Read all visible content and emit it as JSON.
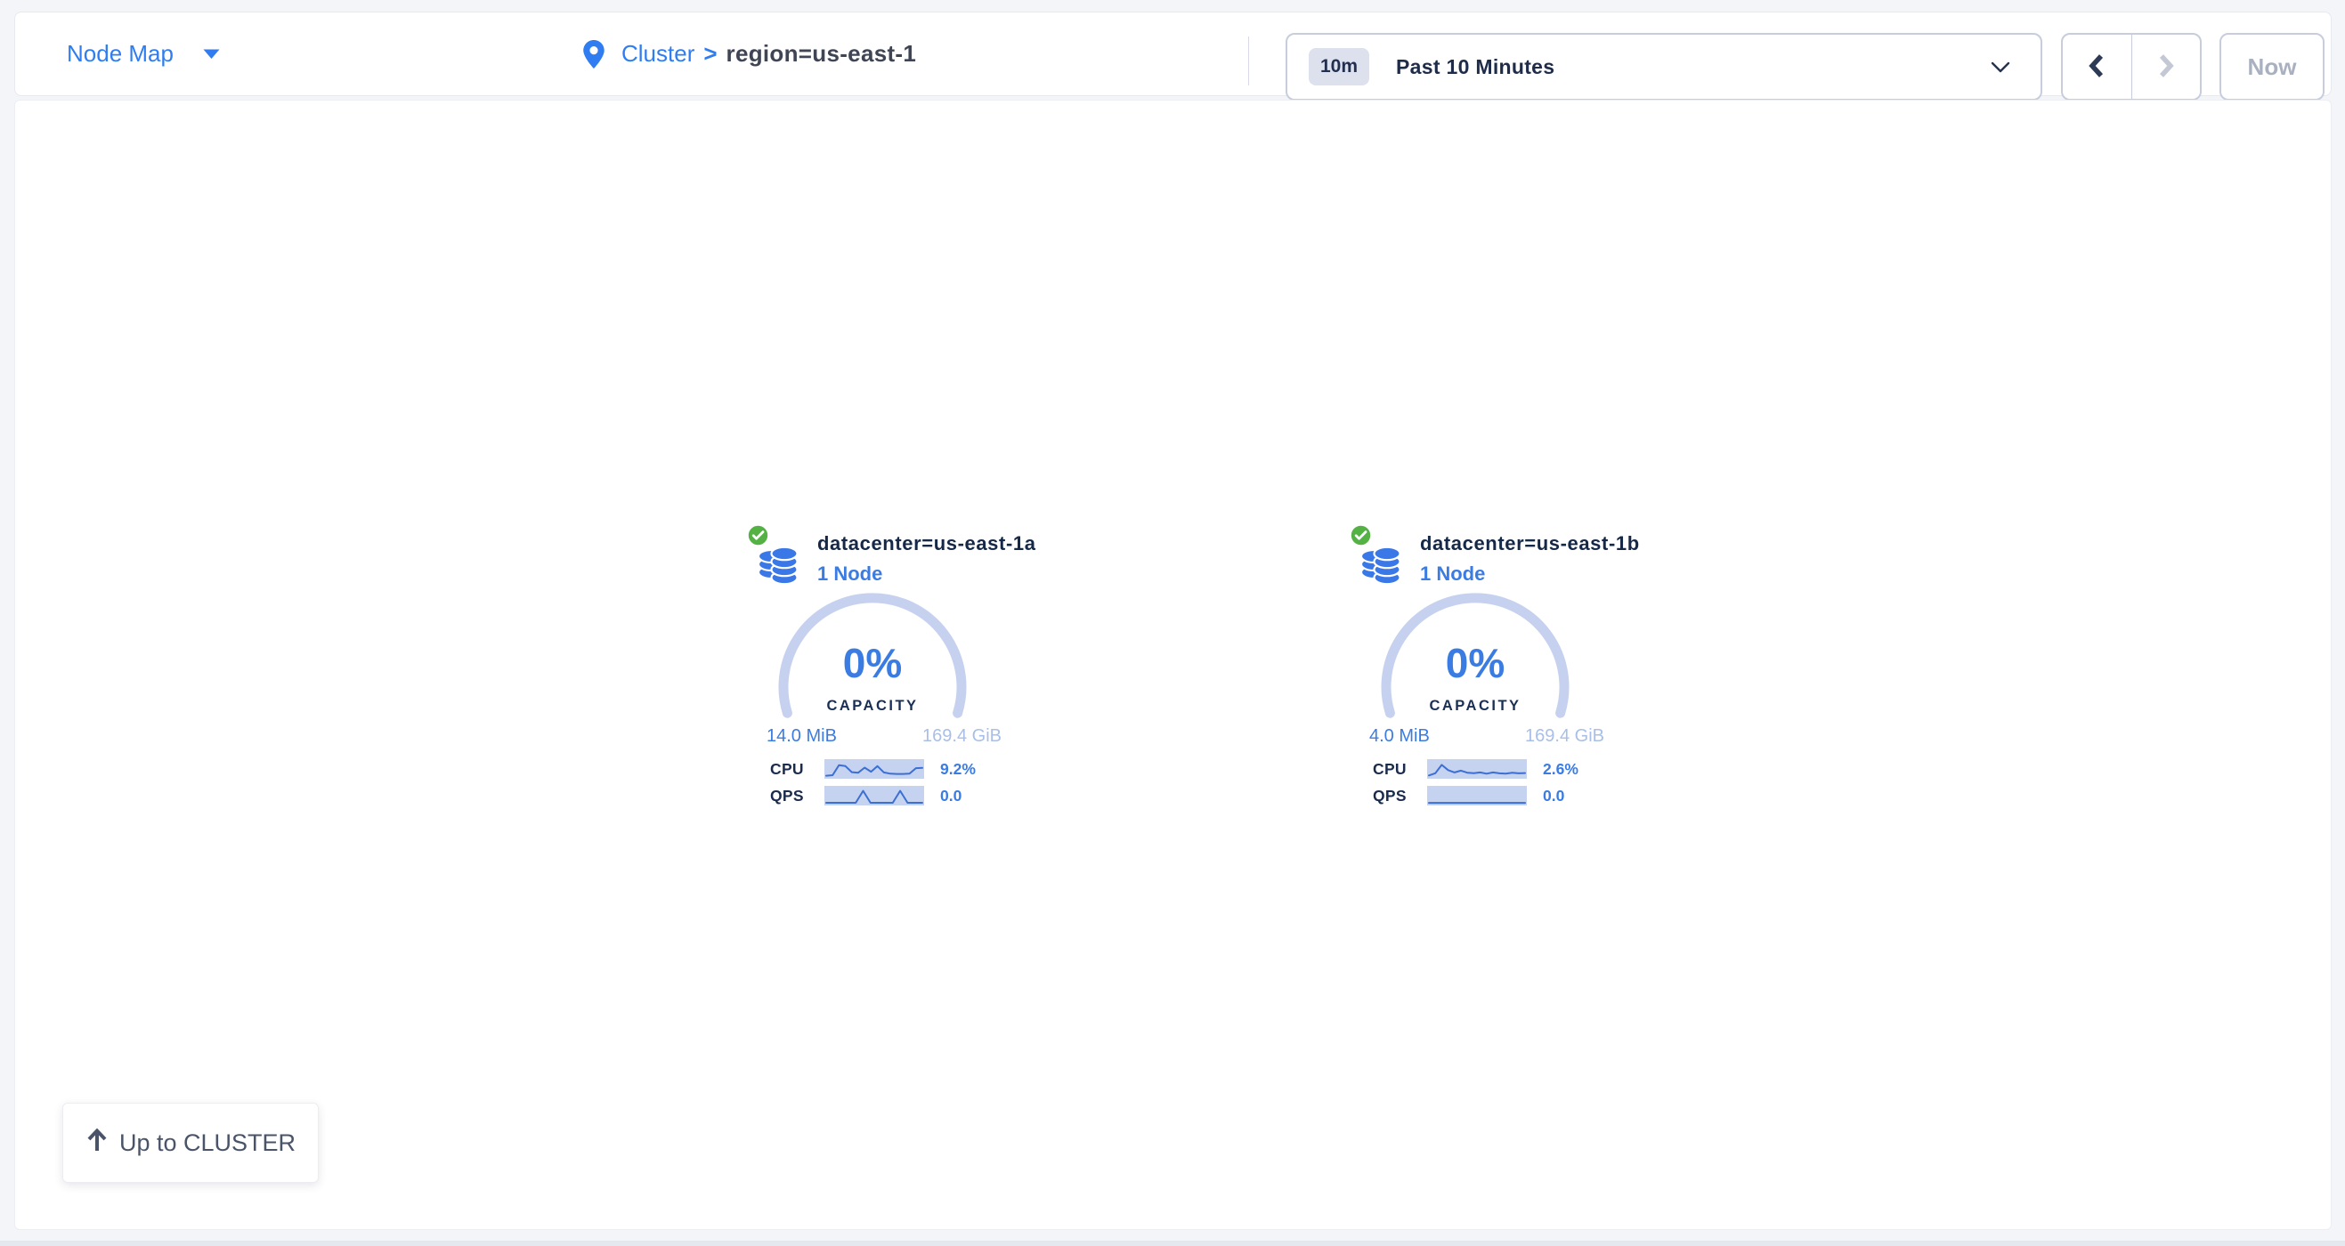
{
  "header": {
    "view_selector": {
      "label": "Node Map"
    },
    "breadcrumb": {
      "root": "Cluster",
      "separator": ">",
      "current": "region=us-east-1"
    },
    "time_controls": {
      "range_badge": "10m",
      "range_label": "Past 10 Minutes",
      "now_label": "Now"
    }
  },
  "datacenters": [
    {
      "status": "healthy",
      "title": "datacenter=us-east-1a",
      "nodes_label": "1 Node",
      "capacity_percent": "0%",
      "capacity_label": "CAPACITY",
      "capacity_used": "14.0 MiB",
      "capacity_total": "169.4 GiB",
      "metrics": [
        {
          "label": "CPU",
          "value": "9.2%",
          "sparkline": [
            0.08,
            0.12,
            0.78,
            0.72,
            0.32,
            0.28,
            0.62,
            0.35,
            0.72,
            0.3,
            0.22,
            0.2,
            0.2,
            0.22,
            0.58,
            0.6
          ]
        },
        {
          "label": "QPS",
          "value": "0.0",
          "sparkline": [
            0.06,
            0.06,
            0.06,
            0.06,
            0.06,
            0.85,
            0.06,
            0.06,
            0.06,
            0.06,
            0.85,
            0.06,
            0.06,
            0.06
          ]
        }
      ]
    },
    {
      "status": "healthy",
      "title": "datacenter=us-east-1b",
      "nodes_label": "1 Node",
      "capacity_percent": "0%",
      "capacity_label": "CAPACITY",
      "capacity_used": "4.0 MiB",
      "capacity_total": "169.4 GiB",
      "metrics": [
        {
          "label": "CPU",
          "value": "2.6%",
          "sparkline": [
            0.1,
            0.25,
            0.8,
            0.45,
            0.3,
            0.42,
            0.28,
            0.25,
            0.3,
            0.22,
            0.3,
            0.24,
            0.22,
            0.28,
            0.24,
            0.26
          ]
        },
        {
          "label": "QPS",
          "value": "0.0",
          "sparkline": [
            0.05,
            0.05,
            0.05,
            0.05,
            0.05,
            0.05
          ]
        }
      ]
    }
  ],
  "up_button": {
    "label": "Up to CLUSTER"
  },
  "colors": {
    "accent_blue": "#3b7ce2",
    "link_blue": "#2f7df0",
    "dark_navy": "#1b2b4d",
    "gauge_arc": "#c5d1ef",
    "sparkline_bg": "#c6d3f0",
    "sparkline_line": "#3b6fd3",
    "healthy_green": "#54b244",
    "capacity_total_muted": "#a9bfe7",
    "disabled_gray": "#a9b0bf"
  }
}
